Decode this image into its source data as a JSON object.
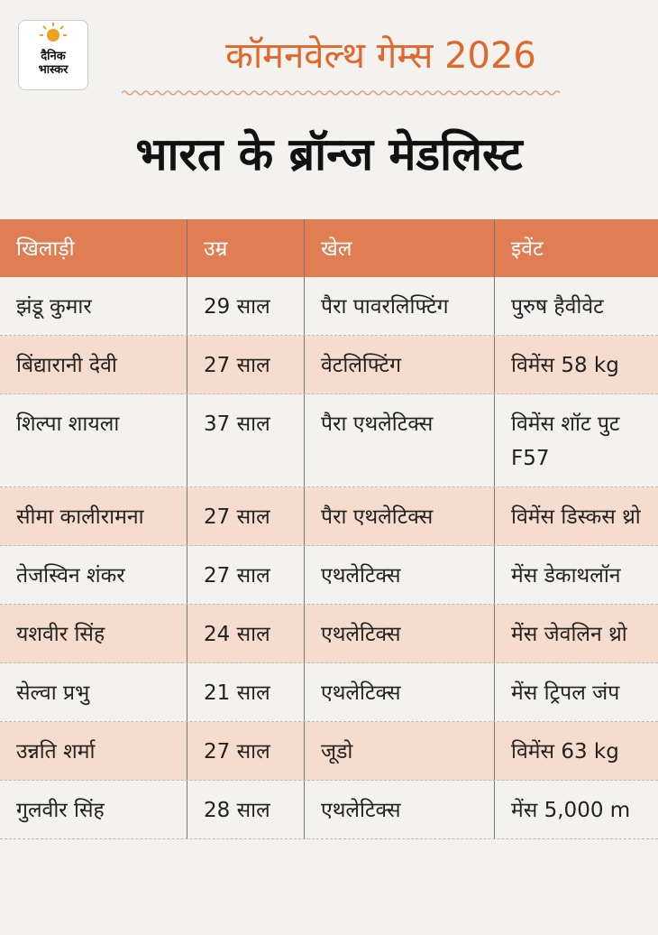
{
  "header": {
    "logo": [
      "दैनिक",
      "भास्कर"
    ],
    "title": "कॉमनवेल्थ गेम्स 2026",
    "subtitle": "भारत के ब्रॉन्ज मेडलिस्ट"
  },
  "table": {
    "columns": [
      "खिलाड़ी",
      "उम्र",
      "खेल",
      "इवेंट"
    ],
    "rows": [
      [
        "झंडू कुमार",
        "29 साल",
        "पैरा पावरलिफ्टिंग",
        "पुरुष हैवीवेट"
      ],
      [
        "बिंद्यारानी देवी",
        "27 साल",
        "वेटलिफ्टिंग",
        "विमेंस 58 kg"
      ],
      [
        "शिल्पा शायला",
        "37 साल",
        "पैरा एथलेटिक्स",
        "विमेंस शॉट पुट F57"
      ],
      [
        "सीमा कालीरामना",
        "27 साल",
        "पैरा एथलेटिक्स",
        "विमेंस डिस्कस थ्रो"
      ],
      [
        "तेजस्विन शंकर",
        "27 साल",
        "एथलेटिक्स",
        "मेंस डेकाथलॉन"
      ],
      [
        "यशवीर सिंह",
        "24 साल",
        "एथलेटिक्स",
        "मेंस जेवलिन थ्रो"
      ],
      [
        "सेल्वा प्रभु",
        "21 साल",
        "एथलेटिक्स",
        "मेंस ट्रिपल जंप"
      ],
      [
        "उन्नति शर्मा",
        "27 साल",
        "जूडो",
        "विमेंस 63 kg"
      ],
      [
        "गुलवीर सिंह",
        "28 साल",
        "एथलेटिक्स",
        "मेंस 5,000 m"
      ]
    ]
  }
}
